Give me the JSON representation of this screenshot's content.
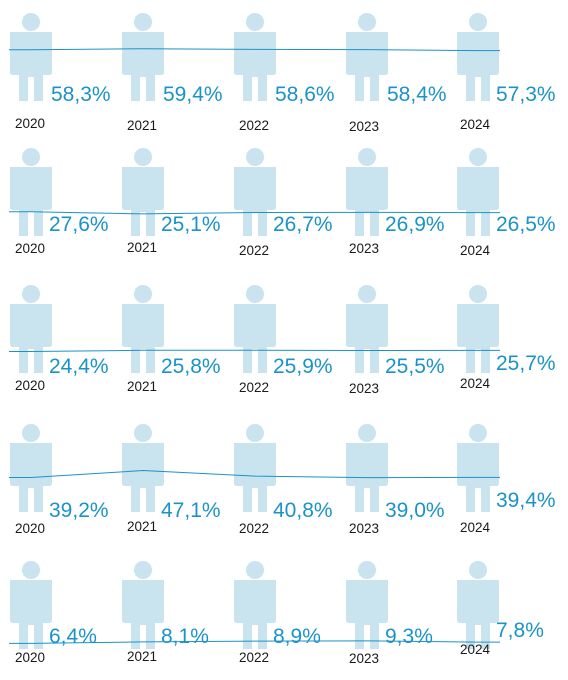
{
  "chart_data": [
    {
      "type": "pictograph",
      "categories": [
        "2020",
        "2021",
        "2022",
        "2023",
        "2024"
      ],
      "values": [
        58.3,
        59.4,
        58.6,
        58.4,
        57.3
      ],
      "labels": [
        "58,3%",
        "59,4%",
        "58,6%",
        "58,4%",
        "57,3%"
      ],
      "ylim": [
        0,
        100
      ]
    },
    {
      "type": "pictograph",
      "categories": [
        "2020",
        "2021",
        "2022",
        "2023",
        "2024"
      ],
      "values": [
        27.6,
        25.1,
        26.7,
        26.9,
        26.5
      ],
      "labels": [
        "27,6%",
        "25,1%",
        "26,7%",
        "26,9%",
        "26,5%"
      ],
      "ylim": [
        0,
        100
      ]
    },
    {
      "type": "pictograph",
      "categories": [
        "2020",
        "2021",
        "2022",
        "2023",
        "2024"
      ],
      "values": [
        24.4,
        25.8,
        25.9,
        25.5,
        25.7
      ],
      "labels": [
        "24,4%",
        "25,8%",
        "25,9%",
        "25,5%",
        "25,7%"
      ],
      "ylim": [
        0,
        100
      ]
    },
    {
      "type": "pictograph",
      "categories": [
        "2020",
        "2021",
        "2022",
        "2023",
        "2024"
      ],
      "values": [
        39.2,
        47.1,
        40.8,
        39.0,
        39.4
      ],
      "labels": [
        "39,2%",
        "47,1%",
        "40,8%",
        "39,0%",
        "39,4%"
      ],
      "ylim": [
        0,
        100
      ]
    },
    {
      "type": "pictograph",
      "categories": [
        "2020",
        "2021",
        "2022",
        "2023",
        "2024"
      ],
      "values": [
        6.4,
        8.1,
        8.9,
        9.3,
        7.8
      ],
      "labels": [
        "6,4%",
        "8,1%",
        "8,9%",
        "9,3%",
        "7,8%"
      ],
      "ylim": [
        0,
        100
      ]
    }
  ],
  "colors": {
    "figure_empty": "#c9e3ef",
    "figure_fill": "#1382c2",
    "label": "#1b93c8",
    "line": "#1b93c8",
    "year": "#1a1a1a"
  },
  "icons": {
    "person": "person-icon"
  }
}
